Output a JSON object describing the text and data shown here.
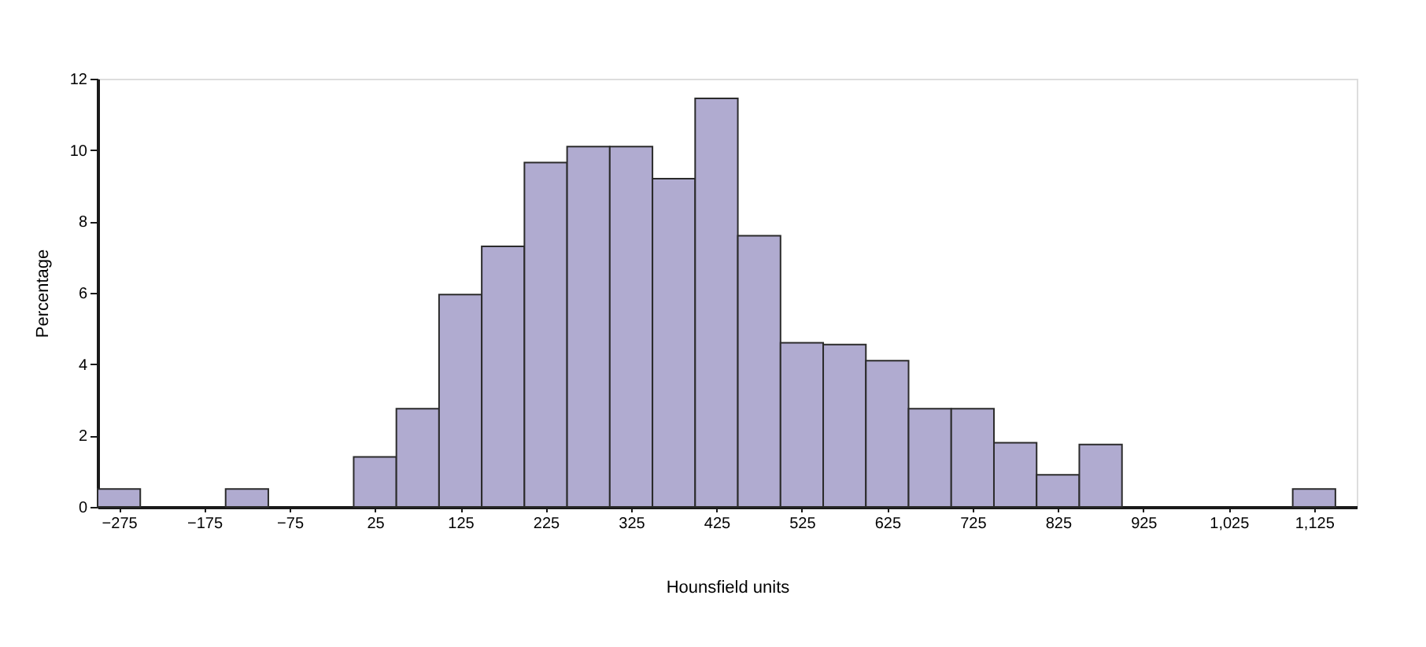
{
  "chart_data": {
    "type": "histogram",
    "xlabel": "Hounsfield units",
    "ylabel": "Percentage",
    "color": "#b0abd0",
    "bins": [
      -300,
      -250,
      -200,
      -150,
      -100,
      -50,
      0,
      50,
      100,
      150,
      200,
      250,
      300,
      350,
      400,
      450,
      500,
      550,
      600,
      650,
      700,
      750,
      800,
      850,
      900,
      950,
      1000,
      1050,
      1100,
      1150
    ],
    "values": [
      0.5,
      0,
      0,
      0.5,
      0,
      0,
      1.4,
      2.75,
      5.95,
      7.3,
      9.65,
      10.1,
      10.1,
      9.2,
      11.45,
      7.6,
      4.6,
      4.55,
      4.1,
      2.75,
      2.75,
      1.8,
      0.9,
      1.75,
      0,
      0,
      0,
      0,
      0.5
    ],
    "xlim": [
      -300,
      1175
    ],
    "ylim": [
      0,
      12
    ],
    "yticks": [
      0,
      2,
      4,
      6,
      8,
      10,
      12
    ],
    "xticks": [
      {
        "value": -275,
        "label": "−275"
      },
      {
        "value": -175,
        "label": "−175"
      },
      {
        "value": -75,
        "label": "−75"
      },
      25,
      125,
      225,
      325,
      425,
      525,
      625,
      725,
      825,
      925,
      {
        "value": 1025,
        "label": "1,025"
      },
      {
        "value": 1125,
        "label": "1,125"
      }
    ],
    "grid": false
  }
}
